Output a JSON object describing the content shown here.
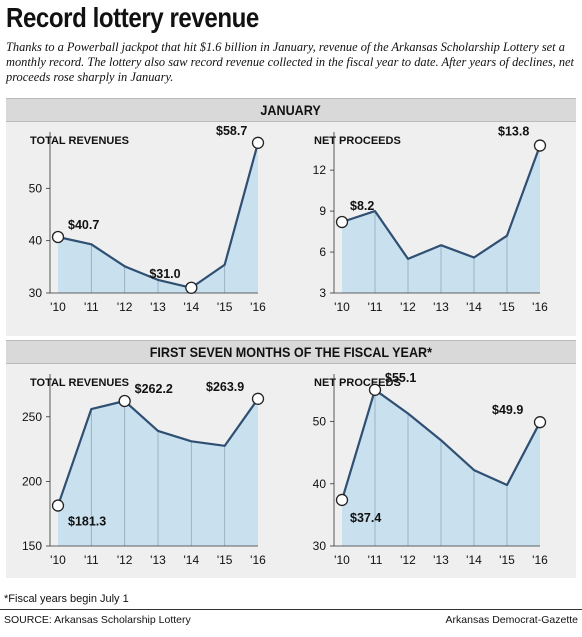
{
  "title": "Record lottery revenue",
  "intro": "Thanks to a Powerball jackpot that hit $1.6 billion in January, revenue of the Arkansas Scholarship Lottery set a monthly record. The lottery also saw record revenue collected in the fiscal year to date. After years of declines, net proceeds rose sharply in January.",
  "sections": [
    {
      "heading": "JANUARY"
    },
    {
      "heading": "FIRST SEVEN MONTHS OF THE FISCAL YEAR*"
    }
  ],
  "footnote": "*Fiscal years begin July 1",
  "source": "SOURCE: Arkansas Scholarship Lottery",
  "credit": "Arkansas Democrat-Gazette",
  "colors": {
    "fill": "#c9e1ee",
    "line": "#2f4f73",
    "band": "#d9d9d9",
    "panel": "#efefef"
  },
  "chart_data": [
    {
      "type": "area",
      "section": "JANUARY",
      "title": "TOTAL REVENUES",
      "x": [
        "'10",
        "'11",
        "'12",
        "'13",
        "'14",
        "'15",
        "'16"
      ],
      "values": [
        40.7,
        39.3,
        35.1,
        32.5,
        31.0,
        35.4,
        58.7
      ],
      "labels": [
        {
          "index": 0,
          "text": "$40.7"
        },
        {
          "index": 4,
          "text": "$31.0"
        },
        {
          "index": 6,
          "text": "$58.7"
        }
      ],
      "yticks": [
        30,
        40,
        50
      ],
      "ylim": [
        30,
        60
      ]
    },
    {
      "type": "area",
      "section": "JANUARY",
      "title": "NET PROCEEDS",
      "x": [
        "'10",
        "'11",
        "'12",
        "'13",
        "'14",
        "'15",
        "'16"
      ],
      "values": [
        8.2,
        9.0,
        5.5,
        6.5,
        5.6,
        7.2,
        13.8
      ],
      "labels": [
        {
          "index": 0,
          "text": "$8.2"
        },
        {
          "index": 6,
          "text": "$13.8"
        }
      ],
      "yticks": [
        3,
        6,
        9,
        12
      ],
      "ylim": [
        3,
        14.5
      ]
    },
    {
      "type": "area",
      "section": "FIRST SEVEN MONTHS OF THE FISCAL YEAR*",
      "title": "TOTAL REVENUES",
      "x": [
        "'10",
        "'11",
        "'12",
        "'13",
        "'14",
        "'15",
        "'16"
      ],
      "values": [
        181.3,
        256.0,
        262.2,
        239.0,
        231.0,
        227.5,
        263.9
      ],
      "labels": [
        {
          "index": 0,
          "text": "$181.3"
        },
        {
          "index": 2,
          "text": "$262.2"
        },
        {
          "index": 6,
          "text": "$263.9"
        }
      ],
      "yticks": [
        150,
        200,
        250
      ],
      "ylim": [
        150,
        280
      ]
    },
    {
      "type": "area",
      "section": "FIRST SEVEN MONTHS OF THE FISCAL YEAR*",
      "title": "NET PROCEEDS",
      "x": [
        "'10",
        "'11",
        "'12",
        "'13",
        "'14",
        "'15",
        "'16"
      ],
      "values": [
        37.4,
        55.1,
        51.3,
        47.0,
        42.2,
        39.8,
        49.9
      ],
      "labels": [
        {
          "index": 0,
          "text": "$37.4"
        },
        {
          "index": 1,
          "text": "$55.1"
        },
        {
          "index": 6,
          "text": "$49.9"
        }
      ],
      "yticks": [
        30,
        40,
        50
      ],
      "ylim": [
        30,
        57
      ]
    }
  ]
}
